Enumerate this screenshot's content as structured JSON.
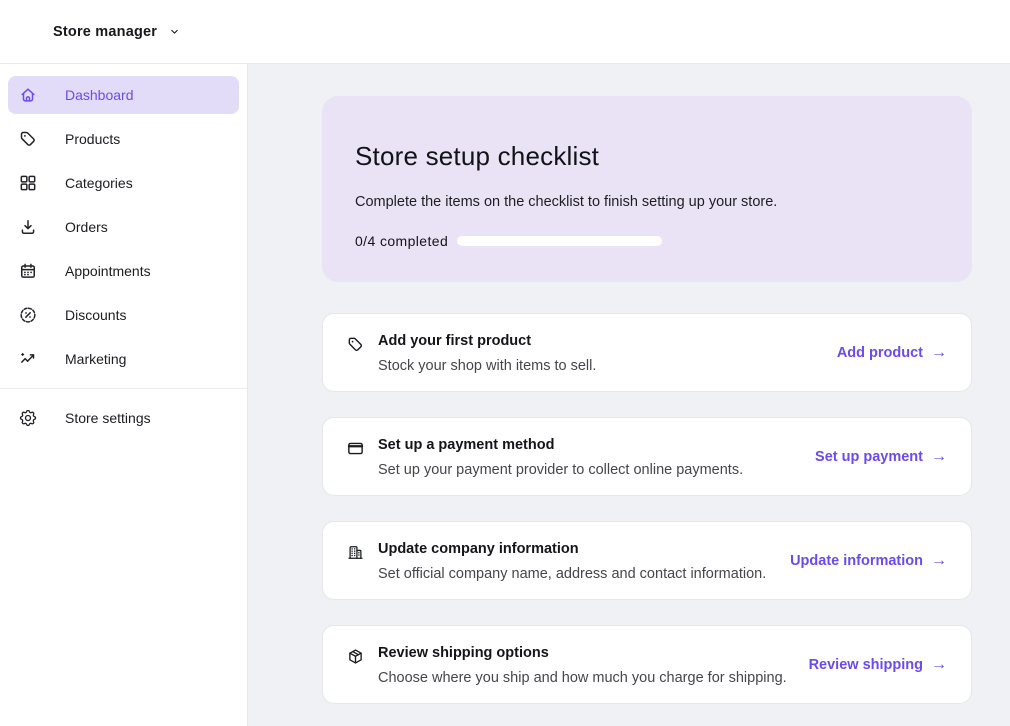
{
  "header": {
    "store_switcher": "Store manager"
  },
  "sidebar": {
    "items": [
      {
        "label": "Dashboard",
        "icon": "home",
        "active": true
      },
      {
        "label": "Products",
        "icon": "tag",
        "active": false
      },
      {
        "label": "Categories",
        "icon": "grid",
        "active": false
      },
      {
        "label": "Orders",
        "icon": "orders",
        "active": false
      },
      {
        "label": "Appointments",
        "icon": "calendar",
        "active": false
      },
      {
        "label": "Discounts",
        "icon": "discount",
        "active": false
      },
      {
        "label": "Marketing",
        "icon": "trending",
        "active": false
      }
    ],
    "footer_items": [
      {
        "label": "Store settings",
        "icon": "gear",
        "active": false
      }
    ]
  },
  "checklist": {
    "title": "Store setup checklist",
    "subtitle": "Complete the items on the checklist to finish setting up your store.",
    "progress_label": "0/4 completed",
    "progress_percent": 0
  },
  "tasks": [
    {
      "icon": "tag",
      "title": "Add your first product",
      "description": "Stock your shop with items to sell.",
      "action": "Add product"
    },
    {
      "icon": "credit-card",
      "title": "Set up a payment method",
      "description": "Set up your payment provider to collect online payments.",
      "action": "Set up payment"
    },
    {
      "icon": "building",
      "title": "Update company information",
      "description": "Set official company name, address and contact information.",
      "action": "Update information"
    },
    {
      "icon": "package",
      "title": "Review shipping options",
      "description": "Choose where you ship and how much you charge for shipping.",
      "action": "Review shipping"
    }
  ],
  "colors": {
    "accent": "#6a4cec",
    "accent_soft": "#e3dcf9",
    "checklist_bg": "#eae3f6",
    "main_bg": "#eff1f4"
  }
}
